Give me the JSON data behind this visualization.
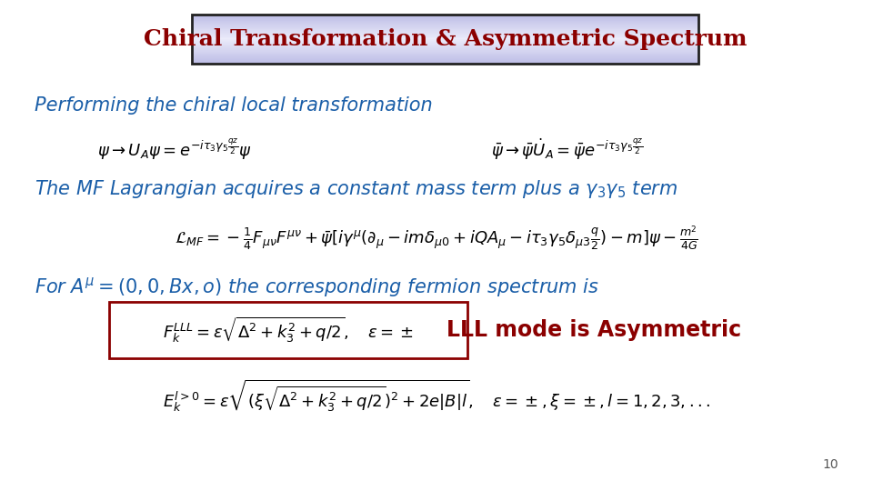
{
  "title": "Chiral Transformation & Asymmetric Spectrum",
  "title_color": "#8B0000",
  "title_border_color": "#222222",
  "title_fontsize": 18,
  "subtitle1": "Performing the chiral local transformation",
  "subtitle1_color": "#1a5ea8",
  "subtitle1_fontsize": 15,
  "text2": "The MF Lagrangian acquires a constant mass term plus a",
  "text2_color": "#1a5ea8",
  "text2_fontsize": 15,
  "text3_color": "#1a5ea8",
  "text3_fontsize": 15,
  "lll_label": "LLL mode is Asymmetric",
  "lll_label_color": "#8B0000",
  "lll_label_fontsize": 17,
  "page_number": "10",
  "bg_color": "#ffffff",
  "eq_color": "#000000",
  "lll_box_color": "#8B0000",
  "eq_fontsize": 13
}
